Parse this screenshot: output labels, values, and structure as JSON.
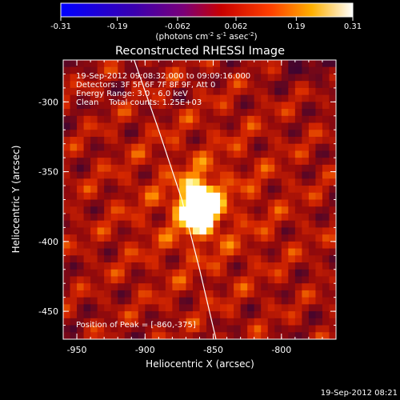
{
  "colorbar": {
    "ticks": [
      "-0.31",
      "-0.19",
      "-0.062",
      "0.062",
      "0.19",
      "0.31"
    ],
    "unit_label_parts": [
      "(photons cm",
      "-2",
      " s",
      "-1",
      " asec",
      "-2",
      ")"
    ],
    "range": [
      -0.31,
      0.31
    ]
  },
  "chart_data": {
    "type": "heatmap",
    "title": "Reconstructed RHESSI Image",
    "xlabel": "Heliocentric X (arcsec)",
    "ylabel": "Heliocentric Y (arcsec)",
    "xlim": [
      -960,
      -760
    ],
    "ylim": [
      -470,
      -270
    ],
    "x_ticks": [
      "-950",
      "-900",
      "-850",
      "-800"
    ],
    "y_ticks": [
      "-300",
      "-350",
      "-400",
      "-450"
    ],
    "info_lines": [
      "19-Sep-2012 09:08:32.000 to 09:09:16.000",
      "Detectors: 3F 5F 6F 7F 8F 9F, Att 0",
      "Energy Range: 3.0 - 6.0 keV",
      "Clean    Total counts: 1.25E+03"
    ],
    "peak_label": "Position of Peak = [-860,-375]",
    "peak": {
      "x": -860,
      "y": -375,
      "value": 0.31
    },
    "limb_curve": [
      [
        -908,
        -270
      ],
      [
        -890,
        -320
      ],
      [
        -873,
        -370
      ],
      [
        -860,
        -420
      ],
      [
        -848,
        -470
      ]
    ],
    "colormap": "RHESSI (blue-purple-red-yellow-white)"
  },
  "timestamp": "19-Sep-2012 08:21"
}
